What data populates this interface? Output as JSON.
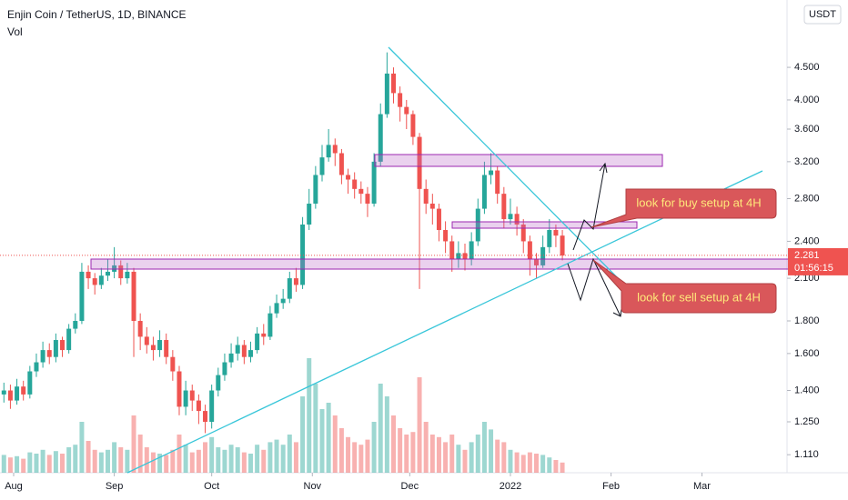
{
  "chart_data": {
    "type": "candlestick",
    "title": "Enjin Coin / TetherUS, 1D, BINANCE",
    "subtitle": "Vol",
    "currency": "USDT",
    "log_scale": true,
    "grid": false,
    "up_color": "#26a69a",
    "down_color": "#ef5350",
    "ylim": [
      1.04,
      5.74
    ],
    "yticks": [
      {
        "value": 4.5,
        "label": "4.500"
      },
      {
        "value": 4,
        "label": "4.000"
      },
      {
        "value": 3.6,
        "label": "3.600"
      },
      {
        "value": 3.2,
        "label": "3.200"
      },
      {
        "value": 2.8,
        "label": "2.800"
      },
      {
        "value": 2.4,
        "label": "2.400"
      },
      {
        "value": 2.1,
        "label": "2.100"
      },
      {
        "value": 1.8,
        "label": "1.800"
      },
      {
        "value": 1.6,
        "label": "1.600"
      },
      {
        "value": 1.4,
        "label": "1.400"
      },
      {
        "value": 1.25,
        "label": "1.250"
      },
      {
        "value": 1.11,
        "label": "1.110"
      }
    ],
    "xlim": [
      -0.6,
      120.6
    ],
    "xticks": [
      {
        "value": 1.5,
        "label": "Aug"
      },
      {
        "value": 17,
        "label": "Sep"
      },
      {
        "value": 32,
        "label": "Oct"
      },
      {
        "value": 47.5,
        "label": "Nov"
      },
      {
        "value": 62.5,
        "label": "Dec"
      },
      {
        "value": 78,
        "label": "2022"
      },
      {
        "value": 93.5,
        "label": "Feb"
      },
      {
        "value": 107.5,
        "label": "Mar"
      }
    ],
    "open": [
      1.38,
      1.4,
      1.35,
      1.42,
      1.38,
      1.5,
      1.55,
      1.62,
      1.58,
      1.68,
      1.62,
      1.75,
      1.8,
      2.15,
      2.1,
      2.05,
      2.12,
      2.15,
      2.2,
      2.1,
      2.15,
      1.8,
      1.7,
      1.65,
      1.62,
      1.68,
      1.58,
      1.5,
      1.32,
      1.4,
      1.35,
      1.3,
      1.25,
      1.4,
      1.48,
      1.55,
      1.6,
      1.65,
      1.58,
      1.62,
      1.72,
      1.7,
      1.85,
      1.92,
      1.95,
      2.1,
      2.05,
      2.55,
      2.75,
      3.05,
      3.25,
      3.4,
      3.3,
      3.05,
      3.0,
      2.9,
      2.85,
      2.75,
      3.2,
      3.8,
      4.4,
      4.1,
      3.9,
      3.8,
      3.5,
      2.9,
      2.75,
      2.7,
      2.5,
      2.4,
      2.25,
      2.3,
      2.25,
      2.4,
      2.7,
      3.05,
      3.1,
      2.85,
      2.6,
      2.65,
      2.55,
      2.4,
      2.25,
      2.2,
      2.35,
      2.5,
      2.45
    ],
    "high": [
      1.44,
      1.43,
      1.46,
      1.45,
      1.53,
      1.6,
      1.67,
      1.66,
      1.72,
      1.7,
      1.78,
      1.85,
      2.22,
      2.2,
      2.14,
      2.18,
      2.25,
      2.35,
      2.24,
      2.22,
      2.18,
      1.85,
      1.76,
      1.7,
      1.74,
      1.72,
      1.62,
      1.53,
      1.45,
      1.43,
      1.38,
      1.33,
      1.43,
      1.52,
      1.6,
      1.66,
      1.7,
      1.68,
      1.67,
      1.76,
      1.78,
      1.9,
      1.98,
      2.02,
      2.15,
      2.18,
      2.62,
      2.9,
      3.15,
      3.4,
      3.6,
      3.48,
      3.35,
      3.12,
      3.08,
      2.98,
      2.92,
      3.3,
      3.95,
      4.75,
      4.5,
      4.2,
      4.0,
      3.85,
      3.55,
      3.0,
      2.85,
      2.75,
      2.58,
      2.45,
      2.4,
      2.38,
      2.48,
      2.8,
      3.2,
      3.3,
      3.15,
      2.92,
      2.8,
      2.72,
      2.6,
      2.45,
      2.3,
      2.45,
      2.6,
      2.55,
      2.5
    ],
    "low": [
      1.34,
      1.31,
      1.33,
      1.35,
      1.36,
      1.47,
      1.52,
      1.54,
      1.55,
      1.58,
      1.6,
      1.72,
      1.78,
      2.02,
      1.98,
      2.02,
      2.08,
      2.1,
      2.05,
      2.06,
      1.58,
      1.62,
      1.6,
      1.56,
      1.58,
      1.54,
      1.45,
      1.28,
      1.28,
      1.3,
      1.24,
      1.2,
      1.22,
      1.37,
      1.45,
      1.52,
      1.56,
      1.54,
      1.55,
      1.6,
      1.65,
      1.68,
      1.82,
      1.88,
      1.92,
      2.0,
      2.02,
      2.5,
      2.7,
      2.98,
      3.2,
      3.15,
      2.95,
      2.85,
      2.8,
      2.75,
      2.62,
      2.72,
      3.15,
      3.75,
      3.95,
      3.7,
      3.6,
      3.4,
      2.02,
      2.65,
      2.55,
      2.4,
      2.3,
      2.15,
      2.18,
      2.16,
      2.2,
      2.36,
      2.65,
      2.95,
      2.75,
      2.52,
      2.55,
      2.45,
      2.3,
      2.12,
      2.1,
      2.18,
      2.3,
      2.35,
      2.24
    ],
    "close": [
      1.4,
      1.35,
      1.42,
      1.38,
      1.5,
      1.55,
      1.62,
      1.58,
      1.68,
      1.62,
      1.75,
      1.8,
      2.15,
      2.1,
      2.05,
      2.12,
      2.15,
      2.2,
      2.1,
      2.15,
      1.8,
      1.7,
      1.65,
      1.62,
      1.68,
      1.58,
      1.5,
      1.32,
      1.4,
      1.35,
      1.3,
      1.25,
      1.4,
      1.48,
      1.55,
      1.6,
      1.65,
      1.58,
      1.62,
      1.72,
      1.7,
      1.85,
      1.92,
      1.95,
      2.1,
      2.05,
      2.55,
      2.75,
      3.05,
      3.25,
      3.4,
      3.3,
      3.05,
      3.0,
      2.9,
      2.85,
      2.75,
      3.2,
      3.8,
      4.4,
      4.1,
      3.9,
      3.8,
      3.5,
      2.9,
      2.75,
      2.7,
      2.5,
      2.4,
      2.25,
      2.3,
      2.25,
      2.4,
      2.7,
      3.05,
      3.1,
      2.85,
      2.6,
      2.65,
      2.55,
      2.4,
      2.25,
      2.2,
      2.35,
      2.5,
      2.45,
      2.28
    ],
    "volume_lim": [
      0,
      100
    ],
    "volume": [
      14,
      12,
      13,
      11,
      16,
      15,
      18,
      14,
      17,
      15,
      20,
      22,
      40,
      25,
      18,
      16,
      18,
      24,
      20,
      18,
      45,
      30,
      20,
      16,
      15,
      14,
      18,
      30,
      22,
      16,
      18,
      24,
      28,
      20,
      18,
      22,
      20,
      16,
      15,
      22,
      18,
      24,
      26,
      22,
      30,
      24,
      60,
      90,
      70,
      50,
      55,
      45,
      35,
      28,
      24,
      22,
      26,
      40,
      70,
      60,
      45,
      35,
      30,
      32,
      75,
      40,
      30,
      28,
      24,
      30,
      22,
      18,
      24,
      30,
      40,
      34,
      26,
      24,
      18,
      16,
      14,
      16,
      15,
      14,
      12,
      10,
      8
    ],
    "last_price": 2.281,
    "countdown": "01:56:15",
    "annotations": [
      "look for buy setup at 4H",
      "look for sell setup at 4H"
    ]
  }
}
